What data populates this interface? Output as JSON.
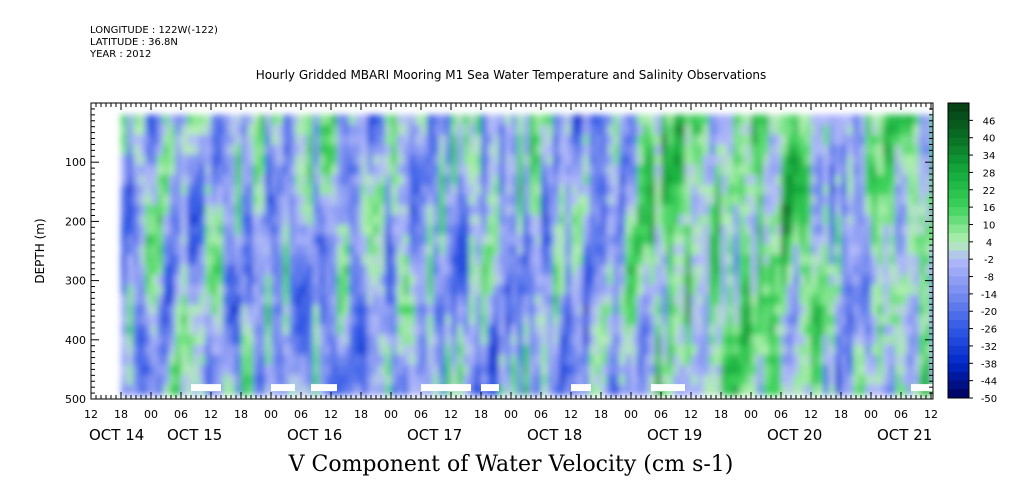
{
  "header": {
    "longitude": "LONGITUDE : 122W(-122)",
    "latitude": "LATITUDE : 36.8N",
    "year": "YEAR : 2012"
  },
  "chart_data": {
    "type": "heatmap",
    "title": "Hourly Gridded MBARI Mooring M1 Sea Water Temperature and Salinity Observations",
    "xlabel": "V Component of Water Velocity (cm s-1)",
    "ylabel": "DEPTH (m)",
    "ylim": [
      500,
      0
    ],
    "y_ticks": [
      100,
      200,
      300,
      400,
      500
    ],
    "hour_ticks": [
      "12",
      "18",
      "00",
      "06",
      "12",
      "18",
      "00",
      "06",
      "12",
      "18",
      "00",
      "06",
      "12",
      "18",
      "00",
      "06",
      "12",
      "18",
      "00",
      "06",
      "12",
      "18",
      "00",
      "06",
      "12",
      "18",
      "00",
      "06",
      "12"
    ],
    "date_labels": [
      "OCT 14",
      "OCT 15",
      "OCT 16",
      "OCT 17",
      "OCT 18",
      "OCT 19",
      "OCT 20",
      "OCT 21"
    ],
    "colorbar_ticks": [
      "46",
      "40",
      "34",
      "28",
      "22",
      "16",
      "10",
      "4",
      "-2",
      "-8",
      "-14",
      "-20",
      "-26",
      "-32",
      "-38",
      "-44",
      "-50"
    ],
    "color_levels": [
      -50,
      52
    ],
    "grid": false,
    "data_extent": {
      "start": "OCT 14 18:00",
      "end": "OCT 21 13:00",
      "depth_min_m": 20,
      "depth_max_m": 485
    },
    "regimes": [
      {
        "time": "OCT 14 18:00",
        "mean_v": -6
      },
      {
        "time": "OCT 15 06:00",
        "mean_v": -2
      },
      {
        "time": "OCT 15 18:00",
        "mean_v": -6
      },
      {
        "time": "OCT 16 06:00",
        "mean_v": -4
      },
      {
        "time": "OCT 16 18:00",
        "mean_v": -7
      },
      {
        "time": "OCT 17 06:00",
        "mean_v": -4
      },
      {
        "time": "OCT 17 18:00",
        "mean_v": -6
      },
      {
        "time": "OCT 18 06:00",
        "mean_v": -2
      },
      {
        "time": "OCT 18 18:00",
        "mean_v": -12
      },
      {
        "time": "OCT 19 06:00",
        "mean_v": 12
      },
      {
        "time": "OCT 19 18:00",
        "mean_v": 6
      },
      {
        "time": "OCT 20 06:00",
        "mean_v": 14
      },
      {
        "time": "OCT 20 18:00",
        "mean_v": -6
      },
      {
        "time": "OCT 21 06:00",
        "mean_v": 8
      }
    ]
  }
}
